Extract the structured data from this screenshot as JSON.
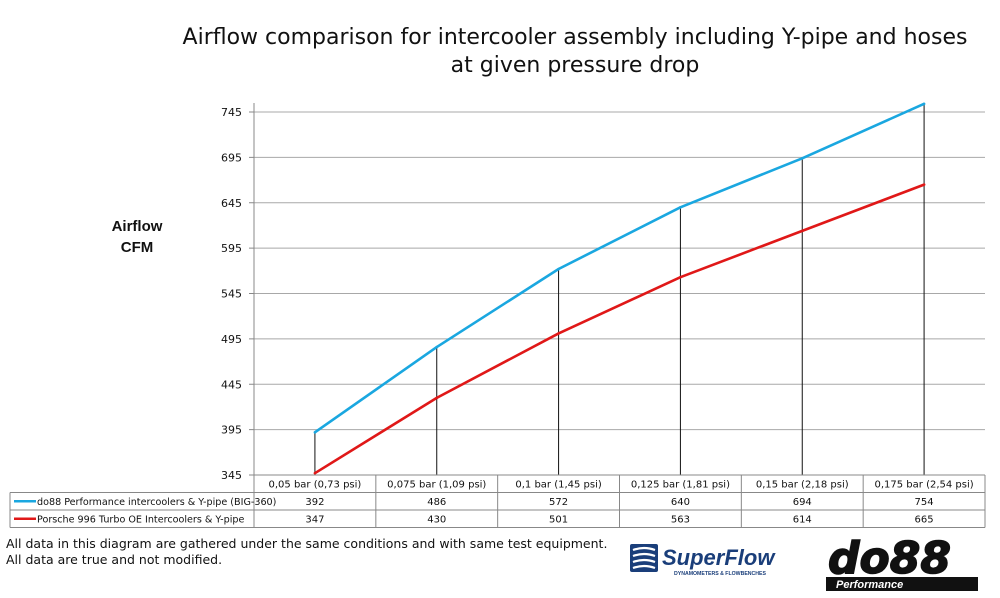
{
  "chart_data": {
    "type": "line",
    "title": "Airflow comparison for intercooler assembly including Y-pipe and hoses at given pressure drop",
    "ylabel_line1": "Airflow",
    "ylabel_line2": "CFM",
    "xlabel": "",
    "categories": [
      "0,05 bar (0,73 psi)",
      "0,075 bar (1,09 psi)",
      "0,1 bar (1,45 psi)",
      "0,125 bar (1,81 psi)",
      "0,15 bar (2,18 psi)",
      "0,175 bar (2,54 psi)"
    ],
    "series": [
      {
        "name": "do88 Performance intercoolers & Y-pipe (BIG-360)",
        "color": "#1aa7e0",
        "values": [
          392,
          486,
          572,
          640,
          694,
          754
        ]
      },
      {
        "name": "Porsche 996 Turbo OE Intercoolers & Y-pipe",
        "color": "#e01818",
        "values": [
          347,
          430,
          501,
          563,
          614,
          665
        ]
      }
    ],
    "yticks": [
      345,
      395,
      445,
      495,
      545,
      595,
      645,
      695,
      745
    ],
    "ylim": [
      345,
      760
    ],
    "grid": true,
    "legend": "data-table"
  },
  "notes": [
    "All data in this diagram are gathered under the same conditions and with same test equipment.",
    "All data are true and not modified."
  ],
  "logos": {
    "superflow_main": "SuperFlow",
    "superflow_tagline": "DYNAMOMETERS & FLOWBENCHES",
    "do88_main": "do88",
    "do88_sub": "Performance"
  }
}
